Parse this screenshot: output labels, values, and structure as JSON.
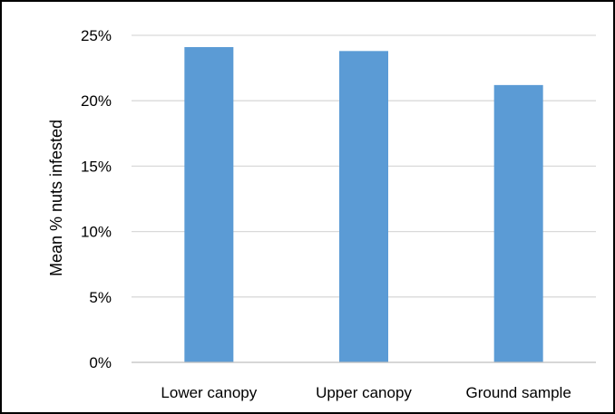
{
  "chart_data": {
    "type": "bar",
    "title": "",
    "xlabel": "",
    "ylabel": "Mean % nuts infested",
    "categories": [
      "Lower canopy",
      "Upper canopy",
      "Ground sample"
    ],
    "values": [
      24.1,
      23.8,
      21.2
    ],
    "value_format": "percent",
    "ylim": [
      0,
      25
    ],
    "yticks": [
      0,
      5,
      10,
      15,
      20,
      25
    ],
    "ytick_labels": [
      "0%",
      "5%",
      "10%",
      "15%",
      "20%",
      "25%"
    ],
    "grid": true,
    "legend": "none",
    "colors": {
      "bar": "#5B9BD5",
      "grid": "#D9D9D9",
      "axis": "#BFBFBF",
      "text": "#000000",
      "border": "#000000"
    }
  }
}
